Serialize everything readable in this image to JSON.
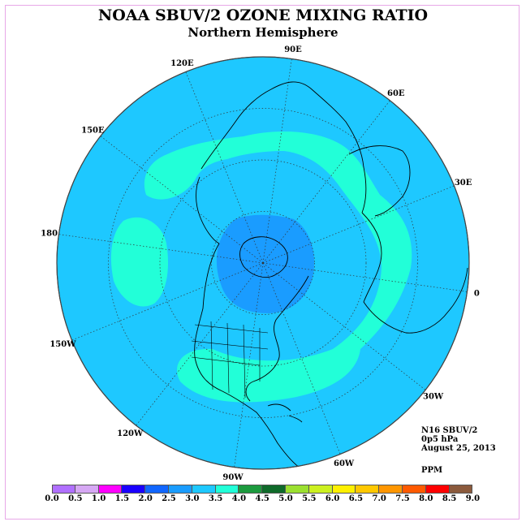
{
  "title": "NOAA SBUV/2 OZONE MIXING RATIO",
  "subtitle": "Northern Hemisphere",
  "info": {
    "satellite": "N16 SBUV/2",
    "level": "0p5 hPa",
    "date": "August 25, 2013",
    "units": "PPM"
  },
  "longitude_labels": [
    {
      "id": "90e",
      "text": "90E",
      "lon": 90
    },
    {
      "id": "60e",
      "text": "60E",
      "lon": 60
    },
    {
      "id": "30e",
      "text": "30E",
      "lon": 30
    },
    {
      "id": "0",
      "text": "0",
      "lon": 0
    },
    {
      "id": "30w",
      "text": "30W",
      "lon": -30
    },
    {
      "id": "60w",
      "text": "60W",
      "lon": -60
    },
    {
      "id": "90w",
      "text": "90W",
      "lon": -90
    },
    {
      "id": "120w",
      "text": "120W",
      "lon": -120
    },
    {
      "id": "150w",
      "text": "150W",
      "lon": -150
    },
    {
      "id": "180",
      "text": "180",
      "lon": 180
    },
    {
      "id": "150e",
      "text": "150E",
      "lon": 150
    },
    {
      "id": "120e",
      "text": "120E",
      "lon": 120
    }
  ],
  "colors": {
    "background_ppm": "#1ec8ff",
    "band_3_5_ppm": "#22ffd8",
    "polar_ppm": "#1a9cff",
    "coast": "#000000",
    "frame": "#e8a8e8"
  },
  "colorbar": {
    "colors": [
      "#b070ff",
      "#d6a8f4",
      "#ff00ff",
      "#1a00ff",
      "#1166ff",
      "#1a9cff",
      "#1ec8ff",
      "#22ffd8",
      "#1c9a3e",
      "#0f6a2a",
      "#9be030",
      "#ccf020",
      "#fff000",
      "#ffc800",
      "#ff9600",
      "#ff5a00",
      "#ff0000",
      "#8b5a3c"
    ],
    "labels": [
      "0.0",
      "0.5",
      "1.0",
      "1.5",
      "2.0",
      "2.5",
      "3.0",
      "3.5",
      "4.0",
      "4.5",
      "5.0",
      "5.5",
      "6.0",
      "6.5",
      "7.0",
      "7.5",
      "8.0",
      "8.5",
      "9.0"
    ]
  }
}
